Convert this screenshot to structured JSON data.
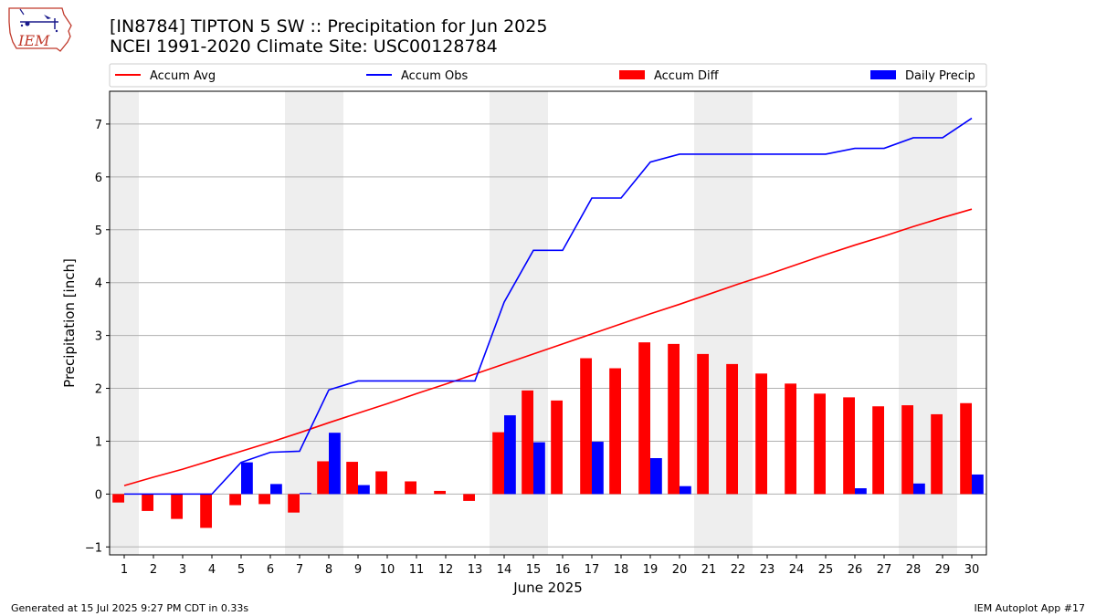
{
  "header": {
    "title_line1": "[IN8784] TIPTON 5 SW :: Precipitation for Jun 2025",
    "title_line2": "NCEI 1991-2020 Climate Site: USC00128784",
    "logo_text": "IEM"
  },
  "footer": {
    "left": "Generated at 15 Jul 2025 9:27 PM CDT in 0.33s",
    "right": "IEM Autoplot App #17"
  },
  "colors": {
    "avg": "#ff0000",
    "obs": "#0000ff",
    "diff": "#ff0000",
    "daily": "#0000ff",
    "weekend_shade": "#eeeeee",
    "grid": "#b0b0b0"
  },
  "chart_data": {
    "type": "bar",
    "xlabel": "June 2025",
    "ylabel": "Precipitation [inch]",
    "ylim": [
      -1.15,
      7.62
    ],
    "yticks": [
      -1,
      0,
      1,
      2,
      3,
      4,
      5,
      6,
      7
    ],
    "xlim": [
      0.5,
      30.5
    ],
    "days": [
      1,
      2,
      3,
      4,
      5,
      6,
      7,
      8,
      9,
      10,
      11,
      12,
      13,
      14,
      15,
      16,
      17,
      18,
      19,
      20,
      21,
      22,
      23,
      24,
      25,
      26,
      27,
      28,
      29,
      30
    ],
    "weekend_days": [
      1,
      7,
      8,
      14,
      15,
      21,
      22,
      28,
      29
    ],
    "grid": "horizontal",
    "legend_placement": "top",
    "series": [
      {
        "name": "Accum Avg",
        "kind": "line",
        "values": [
          0.16,
          0.32,
          0.47,
          0.64,
          0.81,
          0.98,
          1.16,
          1.35,
          1.53,
          1.71,
          1.9,
          2.08,
          2.27,
          2.46,
          2.65,
          2.84,
          3.03,
          3.22,
          3.41,
          3.59,
          3.78,
          3.97,
          4.15,
          4.34,
          4.53,
          4.71,
          4.88,
          5.06,
          5.23,
          5.39
        ]
      },
      {
        "name": "Accum Obs",
        "kind": "line",
        "values": [
          0.0,
          0.0,
          0.0,
          0.0,
          0.6,
          0.79,
          0.81,
          1.97,
          2.14,
          2.14,
          2.14,
          2.14,
          2.14,
          3.63,
          4.61,
          4.61,
          5.6,
          5.6,
          6.28,
          6.43,
          6.43,
          6.43,
          6.43,
          6.43,
          6.43,
          6.54,
          6.54,
          6.74,
          6.74,
          7.11
        ]
      },
      {
        "name": "Accum Diff",
        "kind": "bar",
        "values": [
          -0.16,
          -0.32,
          -0.47,
          -0.64,
          -0.21,
          -0.19,
          -0.35,
          0.62,
          0.61,
          0.43,
          0.24,
          0.06,
          -0.13,
          1.17,
          1.96,
          1.77,
          2.57,
          2.38,
          2.87,
          2.84,
          2.65,
          2.46,
          2.28,
          2.09,
          1.9,
          1.83,
          1.66,
          1.68,
          1.51,
          1.72
        ]
      },
      {
        "name": "Daily Precip",
        "kind": "bar",
        "values": [
          0,
          0,
          0,
          0,
          0.6,
          0.19,
          0.02,
          1.16,
          0.17,
          0,
          0,
          0,
          0,
          1.49,
          0.98,
          0,
          0.99,
          0,
          0.68,
          0.15,
          0,
          0,
          0,
          0,
          0,
          0.11,
          0,
          0.2,
          0,
          0.37
        ]
      }
    ]
  }
}
